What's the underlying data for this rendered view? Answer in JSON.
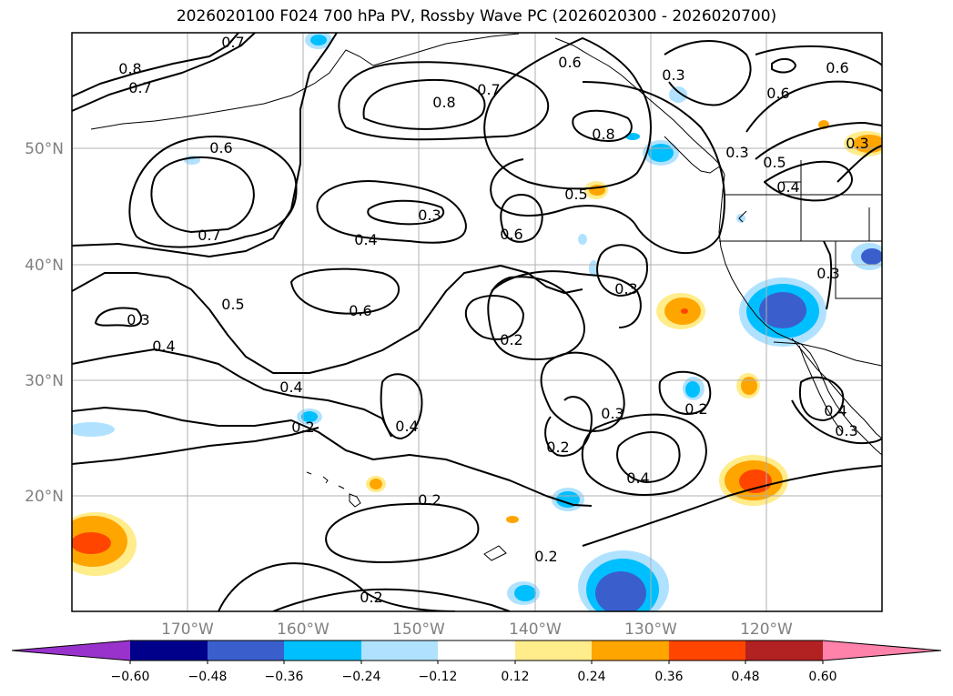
{
  "title": "2026020100 F024 700 hPa PV, Rossby Wave PC (2026020300 - 2026020700)",
  "map": {
    "projection": "equirectangular",
    "lon_range": [
      -180,
      -110
    ],
    "lat_range": [
      10,
      60
    ],
    "grid": true,
    "lat_labels": [
      "50°N",
      "40°N",
      "30°N",
      "20°N"
    ],
    "lon_labels": [
      "170°W",
      "160°W",
      "150°W",
      "140°W",
      "130°W",
      "120°W"
    ],
    "coastlines": true
  },
  "contour_labels": [
    "0.7",
    "0.8",
    "0.7",
    "0.8",
    "0.7",
    "0.6",
    "0.3",
    "0.6",
    "0.6",
    "0.8",
    "0.6",
    "0.3",
    "0.5",
    "0.5",
    "0.4",
    "0.7",
    "0.3",
    "0.4",
    "0.6",
    "0.3",
    "0.5",
    "0.6",
    "0.3",
    "0.4",
    "0.2",
    "0.3",
    "0.4",
    "0.4",
    "0.2",
    "0.2",
    "0.3",
    "0.2",
    "0.4",
    "0.2",
    "0.4",
    "0.3",
    "0.2",
    "0.2",
    "0.3"
  ],
  "colorbar": {
    "tick_labels": [
      "−0.60",
      "−0.48",
      "−0.36",
      "−0.24",
      "−0.12",
      "0.12",
      "0.24",
      "0.36",
      "0.48",
      "0.60"
    ],
    "colors": [
      "#9932cc",
      "#00008b",
      "#3a5fcd",
      "#00bfff",
      "#b0e2ff",
      "#ffffff",
      "#ffec8b",
      "#ffa500",
      "#ff4500",
      "#b22222",
      "#ff82ab"
    ],
    "extend": "both"
  }
}
